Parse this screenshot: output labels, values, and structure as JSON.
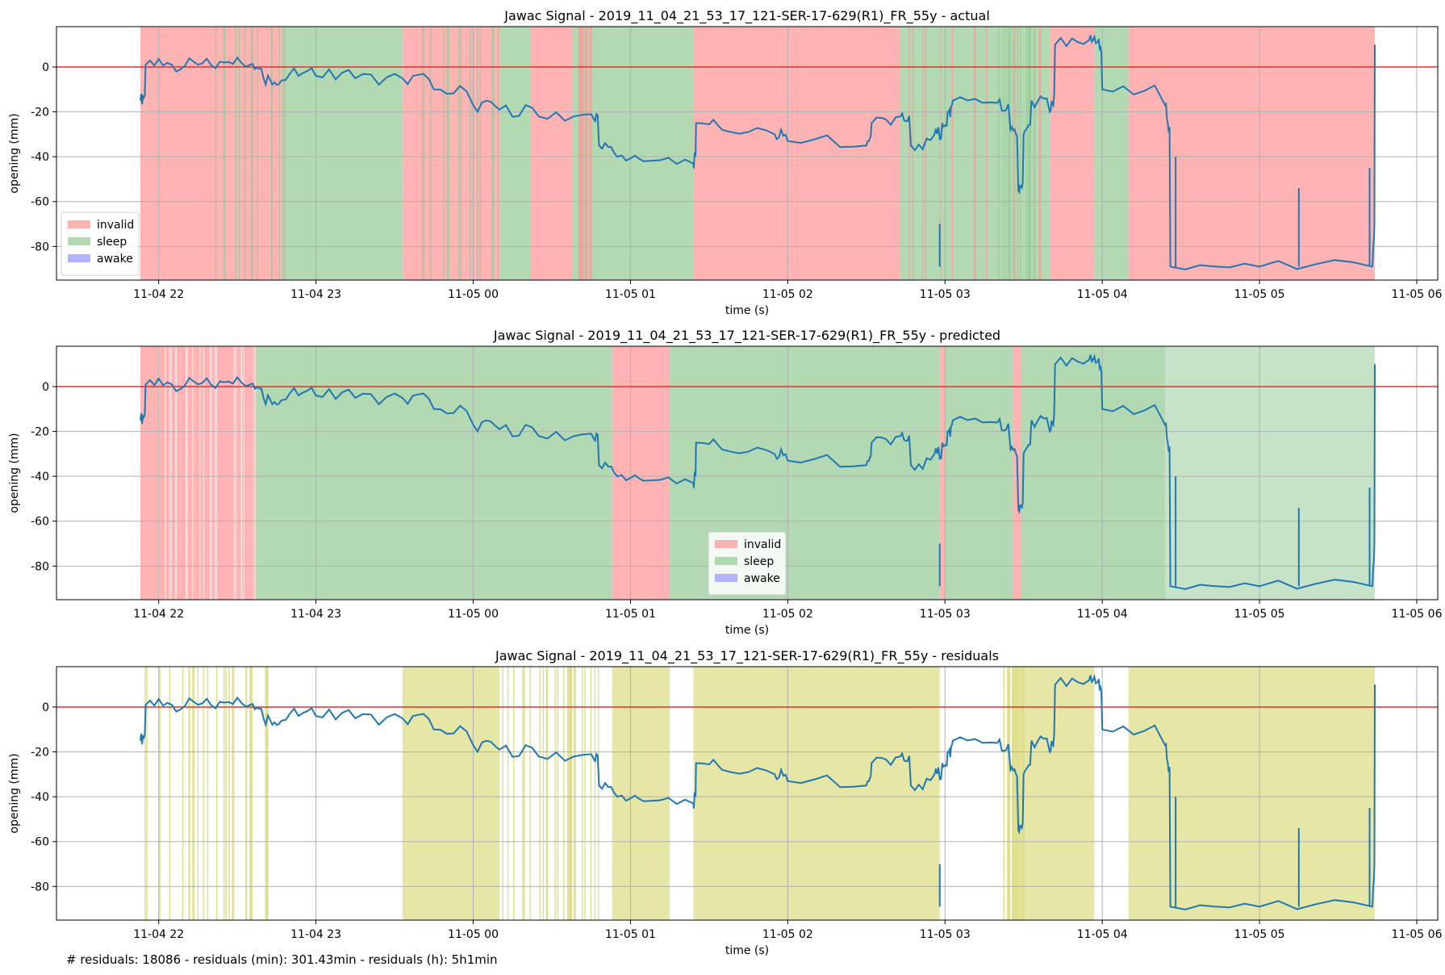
{
  "footer_note": "# residuals: 18086 - residuals (min): 301.43min - residuals (h): 5h1min",
  "colors": {
    "invalid": "#ff9999",
    "sleep": "#99cc99",
    "awake": "#9999ff",
    "residual": "#dddd88",
    "signal": "#1f77b4",
    "zero_line": "#e03030",
    "grid": "#b0b0b0"
  },
  "chart_data": [
    {
      "type": "line",
      "title": "Jawac Signal - 2019_11_04_21_53_17_121-SER-17-629(R1)_FR_55y - actual",
      "xlabel": "time (s)",
      "ylabel": "opening (mm)",
      "xlim": [
        "2019-11-04 21:21",
        "2019-11-05 06:08"
      ],
      "ylim": [
        -95,
        18
      ],
      "xticks": [
        "11-04 22",
        "11-04 23",
        "11-05 00",
        "11-05 01",
        "11-05 02",
        "11-05 03",
        "11-05 04",
        "11-05 05",
        "11-05 06"
      ],
      "yticks": [
        0,
        -20,
        -40,
        -60,
        -80
      ],
      "grid": true,
      "legend": {
        "placement": "lower-left",
        "entries": [
          "invalid",
          "sleep",
          "awake"
        ]
      },
      "bands": [
        {
          "label": "invalid",
          "start": "2019-11-04 21:53",
          "end": "2019-11-04 22:48"
        },
        {
          "label": "sleep",
          "start": "2019-11-04 22:48",
          "end": "2019-11-04 23:33"
        },
        {
          "label": "invalid",
          "start": "2019-11-04 23:33",
          "end": "2019-11-05 00:10"
        },
        {
          "label": "sleep",
          "start": "2019-11-05 00:10",
          "end": "2019-11-05 00:22"
        },
        {
          "label": "invalid",
          "start": "2019-11-05 00:22",
          "end": "2019-11-05 00:38"
        },
        {
          "label": "sleep",
          "start": "2019-11-05 00:38",
          "end": "2019-11-05 01:24"
        },
        {
          "label": "invalid",
          "start": "2019-11-05 01:24",
          "end": "2019-11-05 02:43"
        },
        {
          "label": "sleep",
          "start": "2019-11-05 02:43",
          "end": "2019-11-05 03:40"
        },
        {
          "label": "invalid",
          "start": "2019-11-05 03:40",
          "end": "2019-11-05 03:57"
        },
        {
          "label": "sleep",
          "start": "2019-11-05 03:57",
          "end": "2019-11-05 04:10"
        },
        {
          "label": "invalid",
          "start": "2019-11-05 04:10",
          "end": "2019-11-05 05:44"
        }
      ]
    },
    {
      "type": "line",
      "title": "Jawac Signal - 2019_11_04_21_53_17_121-SER-17-629(R1)_FR_55y - predicted",
      "xlabel": "time (s)",
      "ylabel": "opening (mm)",
      "xlim": [
        "2019-11-04 21:21",
        "2019-11-05 06:08"
      ],
      "ylim": [
        -95,
        18
      ],
      "xticks": [
        "11-04 22",
        "11-04 23",
        "11-05 00",
        "11-05 01",
        "11-05 02",
        "11-05 03",
        "11-05 04",
        "11-05 05",
        "11-05 06"
      ],
      "yticks": [
        0,
        -20,
        -40,
        -60,
        -80
      ],
      "grid": true,
      "legend": {
        "placement": "lower-center",
        "entries": [
          "invalid",
          "sleep",
          "awake"
        ]
      },
      "bands": [
        {
          "label": "invalid",
          "start": "2019-11-04 21:53",
          "end": "2019-11-04 22:37"
        },
        {
          "label": "sleep",
          "start": "2019-11-04 22:37",
          "end": "2019-11-05 00:53"
        },
        {
          "label": "invalid",
          "start": "2019-11-05 00:53",
          "end": "2019-11-05 01:15"
        },
        {
          "label": "sleep",
          "start": "2019-11-05 01:15",
          "end": "2019-11-05 02:58"
        },
        {
          "label": "invalid",
          "start": "2019-11-05 02:58",
          "end": "2019-11-05 03:00"
        },
        {
          "label": "sleep",
          "start": "2019-11-05 03:00",
          "end": "2019-11-05 03:26"
        },
        {
          "label": "invalid",
          "start": "2019-11-05 03:26",
          "end": "2019-11-05 03:29"
        },
        {
          "label": "sleep",
          "start": "2019-11-05 03:29",
          "end": "2019-11-05 04:24"
        },
        {
          "label": "sleep",
          "start": "2019-11-05 04:24",
          "end": "2019-11-05 05:44"
        }
      ]
    },
    {
      "type": "line",
      "title": "Jawac Signal - 2019_11_04_21_53_17_121-SER-17-629(R1)_FR_55y - residuals",
      "xlabel": "time (s)",
      "ylabel": "opening (mm)",
      "xlim": [
        "2019-11-04 21:21",
        "2019-11-05 06:08"
      ],
      "ylim": [
        -95,
        18
      ],
      "xticks": [
        "11-04 22",
        "11-04 23",
        "11-05 00",
        "11-05 01",
        "11-05 02",
        "11-05 03",
        "11-05 04",
        "11-05 05",
        "11-05 06"
      ],
      "yticks": [
        0,
        -20,
        -40,
        -60,
        -80
      ],
      "grid": true,
      "bands": [
        {
          "label": "residual",
          "start": "2019-11-05 04:10",
          "end": "2019-11-05 05:44"
        },
        {
          "label": "residual",
          "start": "2019-11-05 01:24",
          "end": "2019-11-05 02:58"
        },
        {
          "label": "residual",
          "start": "2019-11-05 00:53",
          "end": "2019-11-05 01:15"
        },
        {
          "label": "residual",
          "start": "2019-11-05 03:30",
          "end": "2019-11-05 03:57"
        },
        {
          "label": "residual",
          "start": "2019-11-04 23:33",
          "end": "2019-11-05 00:10"
        }
      ],
      "residual_ticks_ranges": [
        [
          "2019-11-04 21:53",
          "2019-11-04 22:48"
        ],
        [
          "2019-11-05 00:10",
          "2019-11-05 00:48"
        ],
        [
          "2019-11-05 03:22",
          "2019-11-05 03:30"
        ]
      ]
    }
  ],
  "signal": {
    "name": "opening",
    "x": [
      "2019-11-04 21:53",
      "2019-11-04 21:55",
      "2019-11-04 22:05",
      "2019-11-04 22:15",
      "2019-11-04 22:25",
      "2019-11-04 22:35",
      "2019-11-04 22:40",
      "2019-11-04 22:45",
      "2019-11-04 22:50",
      "2019-11-04 23:00",
      "2019-11-04 23:15",
      "2019-11-04 23:33",
      "2019-11-04 23:45",
      "2019-11-05 00:00",
      "2019-11-05 00:10",
      "2019-11-05 00:25",
      "2019-11-05 00:45",
      "2019-11-05 00:48",
      "2019-11-05 00:55",
      "2019-11-05 01:05",
      "2019-11-05 01:24",
      "2019-11-05 01:25",
      "2019-11-05 01:35",
      "2019-11-05 01:55",
      "2019-11-05 02:00",
      "2019-11-05 02:30",
      "2019-11-05 02:32",
      "2019-11-05 02:43",
      "2019-11-05 02:47",
      "2019-11-05 02:56",
      "2019-11-05 02:59",
      "2019-11-05 03:01",
      "2019-11-05 03:03",
      "2019-11-05 03:20",
      "2019-11-05 03:25",
      "2019-11-05 03:28",
      "2019-11-05 03:30",
      "2019-11-05 03:33",
      "2019-11-05 03:40",
      "2019-11-05 03:42",
      "2019-11-05 03:55",
      "2019-11-05 03:58",
      "2019-11-05 04:00",
      "2019-11-05 04:24",
      "2019-11-05 04:26",
      "2019-11-05 05:00",
      "2019-11-05 05:43",
      "2019-11-05 05:44"
    ],
    "y": [
      -15,
      1,
      1,
      1,
      2,
      1,
      -5,
      -8,
      -3,
      -4,
      -5,
      -5,
      -10,
      -17,
      -19,
      -22,
      -21,
      -35,
      -40,
      -42,
      -43,
      -25,
      -28,
      -30,
      -33,
      -35,
      -25,
      -22,
      -35,
      -30,
      -25,
      -20,
      -15,
      -16,
      -28,
      -55,
      -30,
      -15,
      -20,
      10,
      12,
      11,
      -10,
      -17,
      -89,
      -89,
      -89,
      10
    ]
  }
}
